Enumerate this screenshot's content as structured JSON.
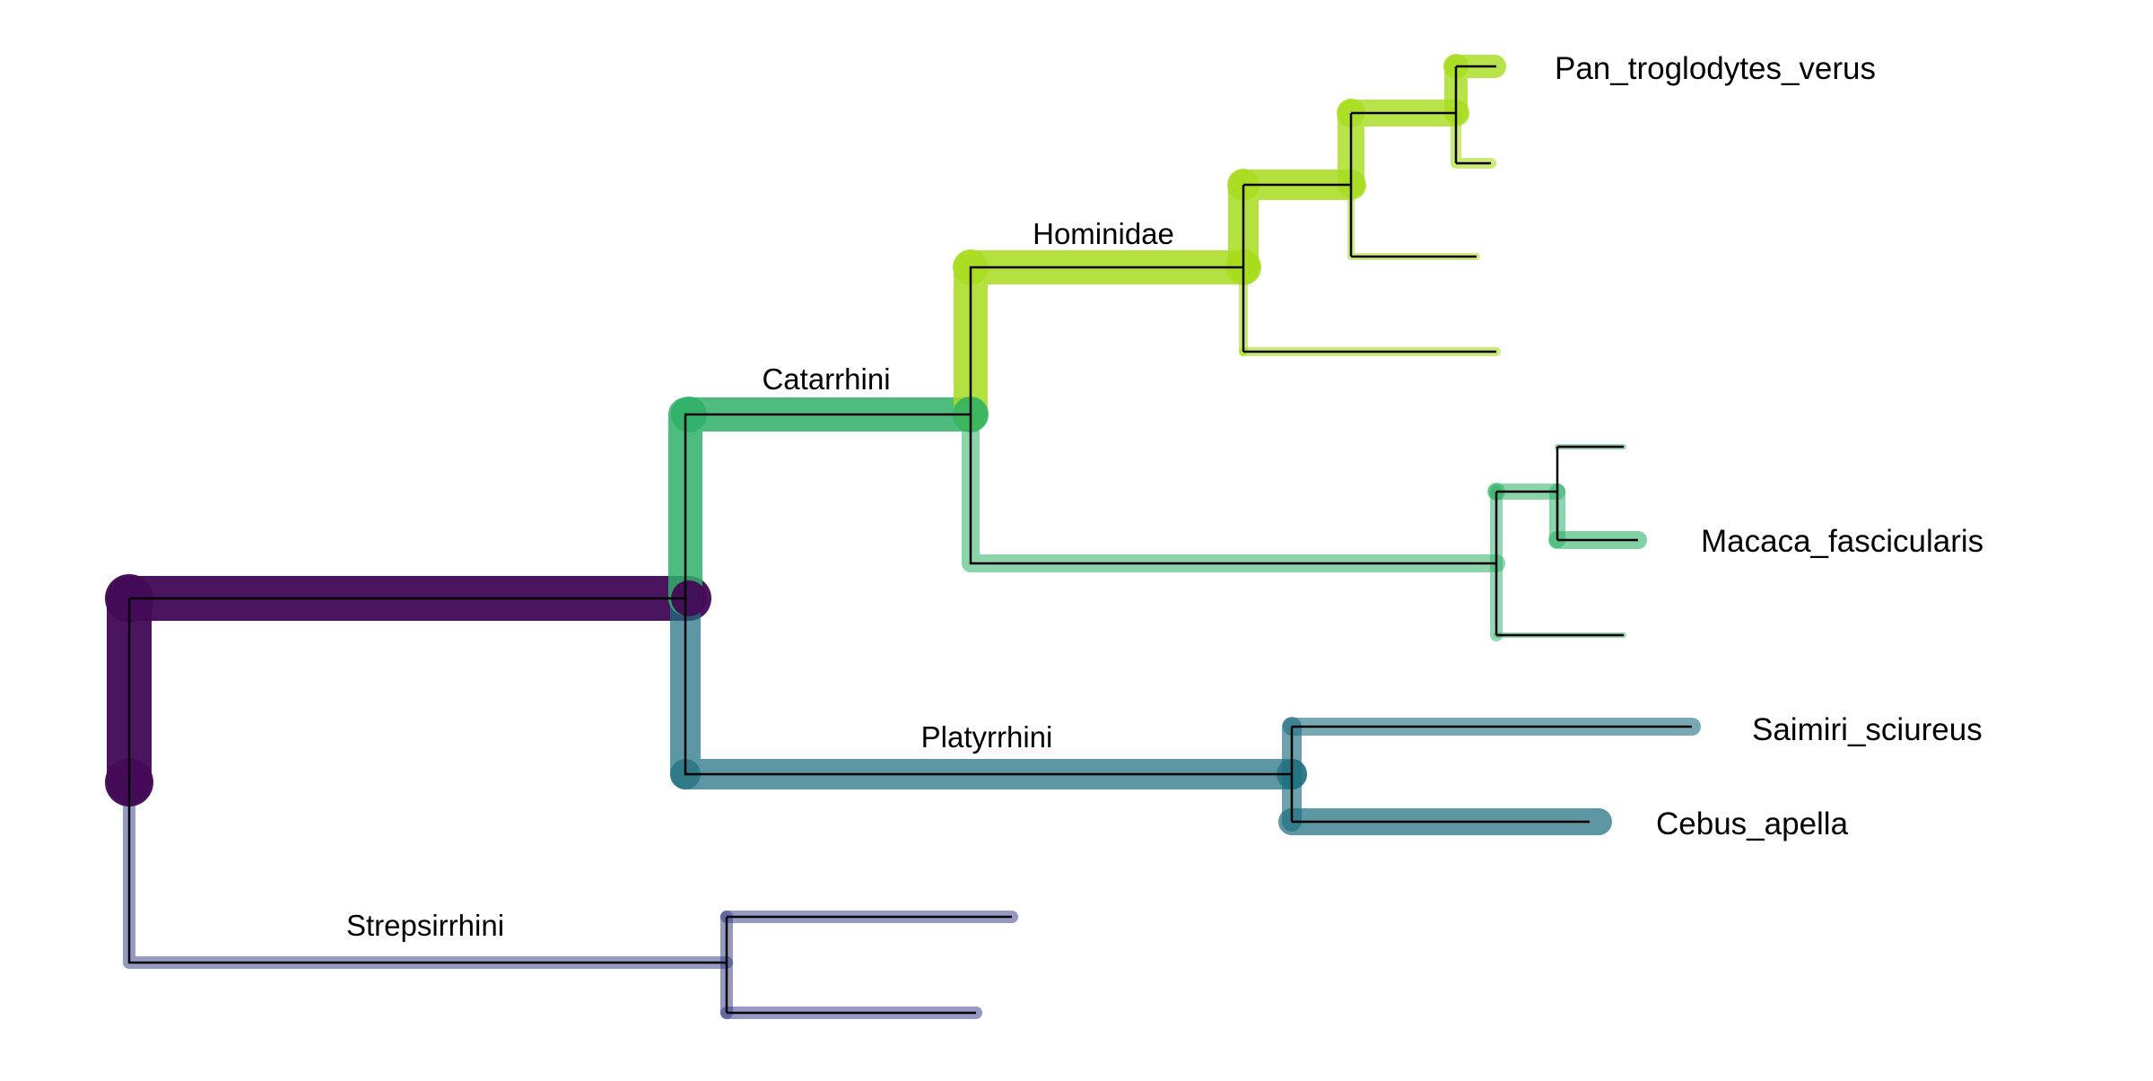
{
  "tree": {
    "clades": [
      {
        "id": "strepsirrhini",
        "label": "Strepsirrhini",
        "color": "#2d3585"
      },
      {
        "id": "platyrrhini",
        "label": "Platyrrhini",
        "color": "#1e6f7f"
      },
      {
        "id": "catarrhini",
        "label": "Catarrhini",
        "color": "#2eb067"
      },
      {
        "id": "hominidae",
        "label": "Hominidae",
        "color": "#a8dc1e"
      }
    ],
    "root_color": "#440a57",
    "tip_labels": [
      {
        "id": "pan",
        "text": "Pan_troglodytes_verus"
      },
      {
        "id": "macaca",
        "text": "Macaca_fascicularis"
      },
      {
        "id": "saimiri",
        "text": "Saimiri_sciureus"
      },
      {
        "id": "cebus",
        "text": "Cebus_apella"
      }
    ]
  }
}
